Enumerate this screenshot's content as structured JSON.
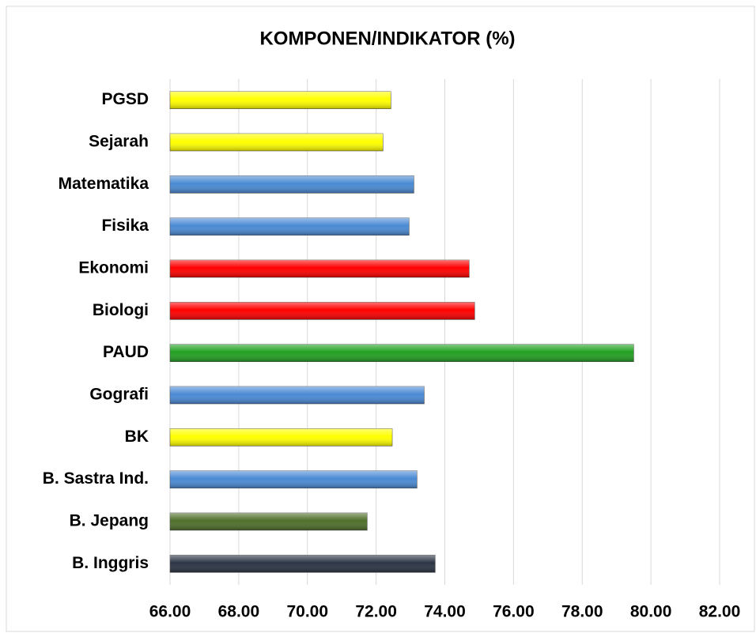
{
  "chart_data": {
    "type": "bar",
    "orientation": "horizontal",
    "title": "KOMPONEN/INDIKATOR (%)",
    "categories": [
      "PGSD",
      "Sejarah",
      "Matematika",
      "Fisika",
      "Ekonomi",
      "Biologi",
      "PAUD",
      "Gografi",
      "BK",
      "B. Sastra Ind.",
      "B. Jepang",
      "B. Inggris"
    ],
    "values": [
      72.43,
      72.2,
      73.1,
      72.96,
      74.71,
      74.87,
      79.5,
      73.4,
      72.47,
      73.19,
      71.74,
      73.72
    ],
    "colors": [
      "#ffff00",
      "#ffff00",
      "#4a8ad4",
      "#4a8ad4",
      "#ff0000",
      "#ff0000",
      "#22a022",
      "#4a8ad4",
      "#ffff00",
      "#4a8ad4",
      "#4f6f2a",
      "#2b3444"
    ],
    "xlim": [
      66,
      82
    ],
    "xticks": [
      {
        "value": 66,
        "label": "66.00"
      },
      {
        "value": 68,
        "label": "68.00"
      },
      {
        "value": 70,
        "label": "70.00"
      },
      {
        "value": 72,
        "label": "72.00"
      },
      {
        "value": 74,
        "label": "74.00"
      },
      {
        "value": 76,
        "label": "76.00"
      },
      {
        "value": 78,
        "label": "78.00"
      },
      {
        "value": 80,
        "label": "80.00"
      },
      {
        "value": 82,
        "label": "82.00"
      }
    ],
    "grid": true
  }
}
